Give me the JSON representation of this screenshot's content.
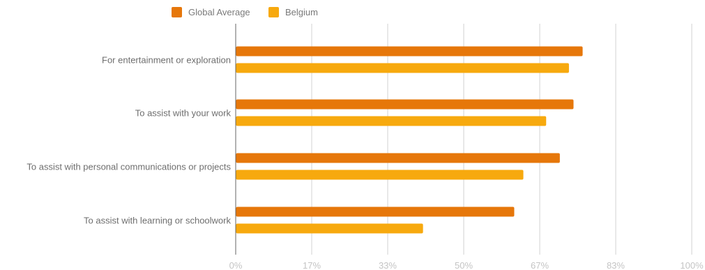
{
  "chart_data": {
    "type": "bar",
    "orientation": "horizontal",
    "categories": [
      "For entertainment or exploration",
      "To assist with your work",
      "To assist with personal communications or projects",
      "To assist with learning or schoolwork"
    ],
    "series": [
      {
        "name": "Global Average",
        "color": "#e6770a",
        "values": [
          76,
          74,
          71,
          61
        ]
      },
      {
        "name": "Belgium",
        "color": "#f7a90e",
        "values": [
          73,
          68,
          63,
          41
        ]
      }
    ],
    "xlim": [
      0,
      100
    ],
    "x_ticks": [
      "0%",
      "17%",
      "33%",
      "50%",
      "67%",
      "83%",
      "100%"
    ],
    "x_tick_values": [
      0,
      16.67,
      33.33,
      50,
      66.67,
      83.33,
      100
    ],
    "grid": "vertical",
    "legend_position": "top-left",
    "title": "",
    "xlabel": "",
    "ylabel": ""
  }
}
